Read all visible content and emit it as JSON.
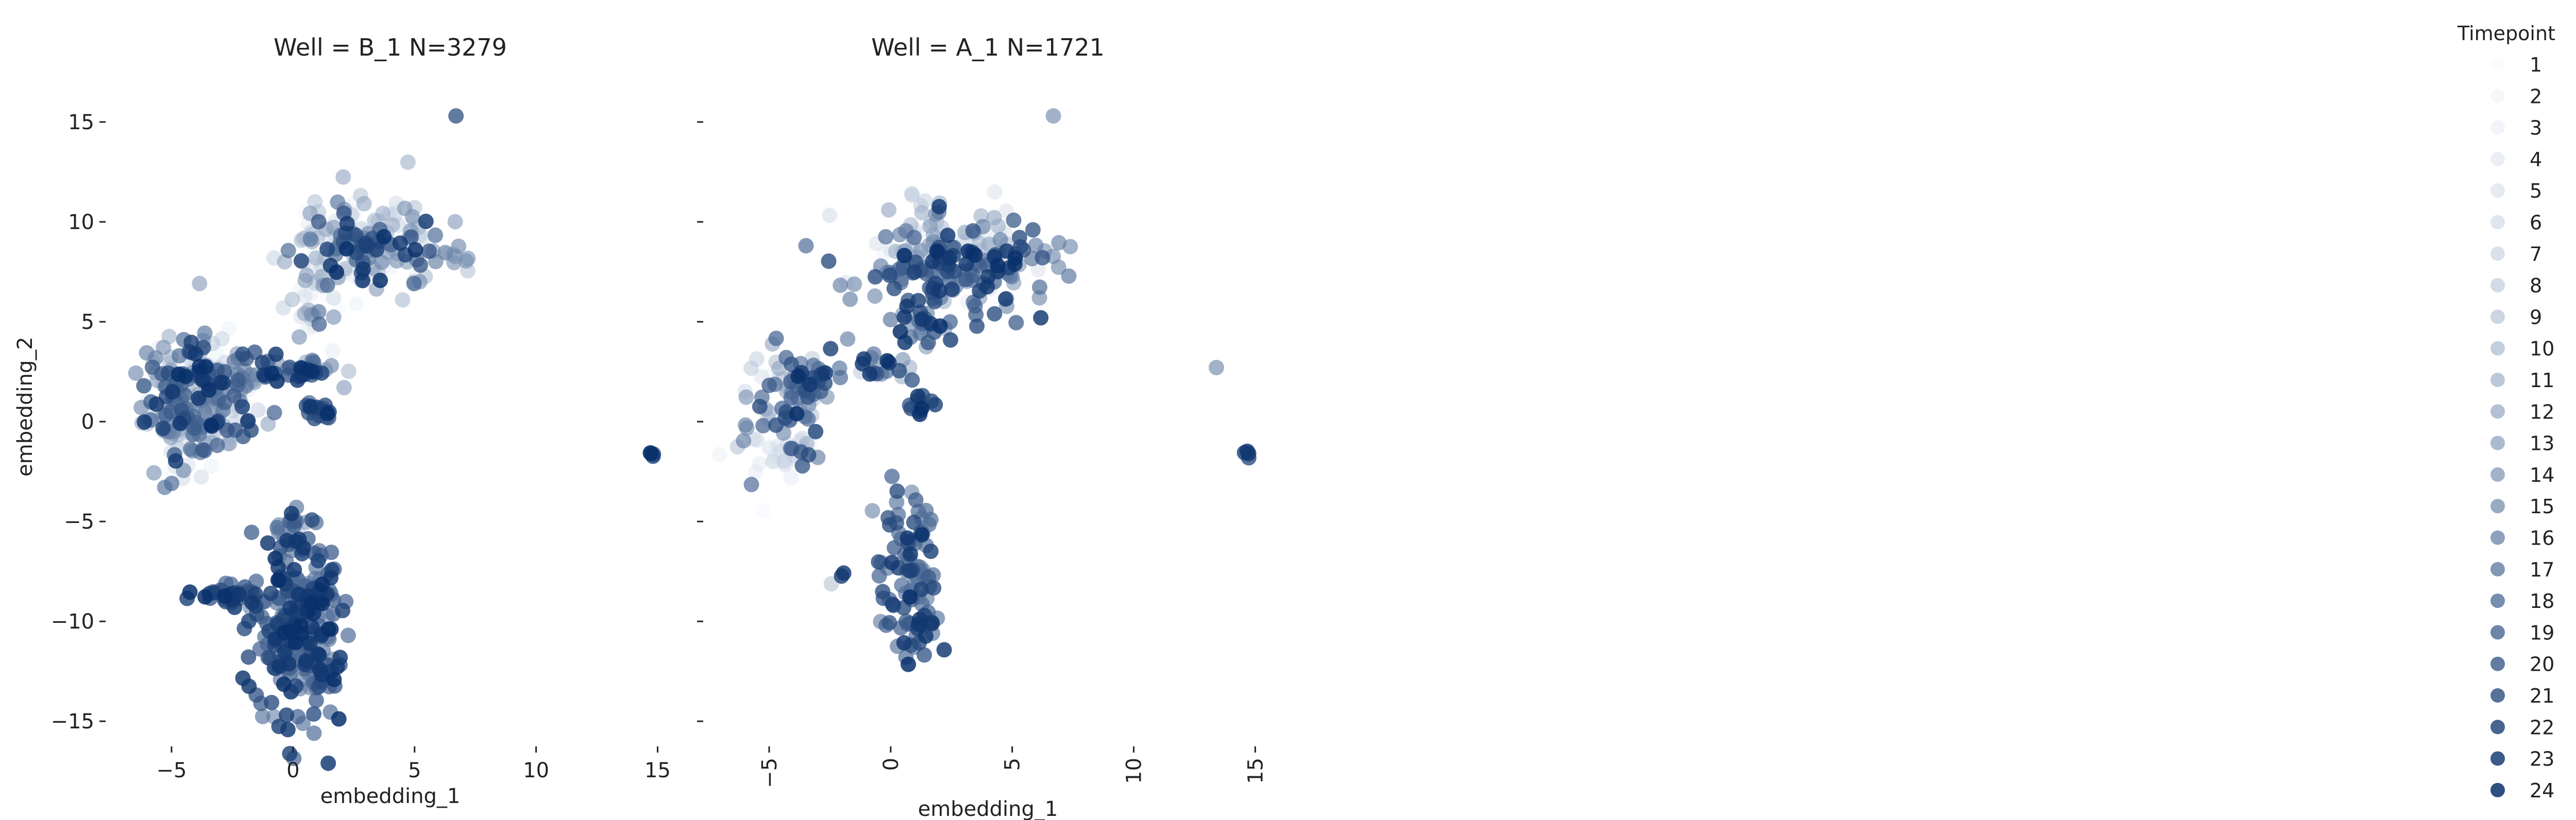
{
  "chart_data": [
    {
      "type": "scatter",
      "title": "Well = B_1 N=3279",
      "xlabel": "embedding_1",
      "ylabel": "embedding_2",
      "xlim": [
        -7.5,
        15.5
      ],
      "ylim": [
        -16,
        17.5
      ],
      "xticks": [
        -5,
        0,
        5,
        10,
        15
      ],
      "xtick_labels": [
        "−5",
        "0",
        "5",
        "10",
        "15"
      ],
      "xtick_rotation": 0,
      "yticks": [
        15,
        10,
        5,
        0,
        -5,
        -10,
        -15
      ],
      "ytick_labels": [
        "15",
        "10",
        "5",
        "0",
        "−5",
        "−10",
        "−15"
      ],
      "grid": false,
      "clusters": [
        {
          "cx": -3.6,
          "cy": 1.2,
          "sx": 1.2,
          "sy": 1.5,
          "n": 190,
          "tmin": 1,
          "tmax": 24
        },
        {
          "cx": -4.8,
          "cy": 0.3,
          "sx": 0.5,
          "sy": 1.7,
          "n": 60,
          "tmin": 4,
          "tmax": 20
        },
        {
          "cx": -0.6,
          "cy": 2.6,
          "sx": 1.2,
          "sy": 0.35,
          "n": 40,
          "tmin": 6,
          "tmax": 24
        },
        {
          "cx": 0.9,
          "cy": 6.2,
          "sx": 0.8,
          "sy": 1.6,
          "n": 35,
          "tmin": 1,
          "tmax": 18
        },
        {
          "cx": 3.0,
          "cy": 9.0,
          "sx": 1.5,
          "sy": 1.3,
          "n": 120,
          "tmin": 1,
          "tmax": 14
        },
        {
          "cx": 2.8,
          "cy": 8.7,
          "sx": 1.1,
          "sy": 0.9,
          "n": 45,
          "tmin": 15,
          "tmax": 24
        },
        {
          "cx": 6.5,
          "cy": 8.3,
          "sx": 0.4,
          "sy": 0.3,
          "n": 8,
          "tmin": 10,
          "tmax": 16
        },
        {
          "cx": 1.0,
          "cy": 0.6,
          "sx": 0.45,
          "sy": 0.3,
          "n": 18,
          "tmin": 18,
          "tmax": 24
        },
        {
          "cx": 0.7,
          "cy": 2.5,
          "sx": 0.3,
          "sy": 0.2,
          "n": 8,
          "tmin": 20,
          "tmax": 24
        },
        {
          "cx": 0.2,
          "cy": -10.3,
          "sx": 0.9,
          "sy": 2.3,
          "n": 260,
          "tmin": 14,
          "tmax": 24
        },
        {
          "cx": 0.0,
          "cy": -5.5,
          "sx": 0.35,
          "sy": 0.8,
          "n": 20,
          "tmin": 8,
          "tmax": 24
        },
        {
          "cx": -2.8,
          "cy": -8.7,
          "sx": 0.7,
          "sy": 0.3,
          "n": 30,
          "tmin": 16,
          "tmax": 24
        },
        {
          "cx": 14.7,
          "cy": -1.6,
          "sx": 0.08,
          "sy": 0.08,
          "n": 4,
          "tmin": 20,
          "tmax": 24
        },
        {
          "cx": 6.7,
          "cy": 15.3,
          "sx": 0.01,
          "sy": 0.01,
          "n": 1,
          "tmin": 20,
          "tmax": 20
        }
      ]
    },
    {
      "type": "scatter",
      "title": "Well = A_1 N=1721",
      "xlabel": "embedding_1",
      "ylabel": "",
      "xlim": [
        -7.5,
        15.5
      ],
      "ylim": [
        -16,
        17.5
      ],
      "xticks": [
        -5,
        0,
        5,
        10,
        15
      ],
      "xtick_labels": [
        "−5",
        "0",
        "5",
        "10",
        "15"
      ],
      "xtick_rotation": -90,
      "yticks": [
        15,
        10,
        5,
        0,
        -5,
        -10,
        -15
      ],
      "ytick_labels": [],
      "grid": false,
      "clusters": [
        {
          "cx": -4.5,
          "cy": 0.8,
          "sx": 0.9,
          "sy": 1.4,
          "n": 70,
          "tmin": 1,
          "tmax": 24
        },
        {
          "cx": -3.2,
          "cy": 1.7,
          "sx": 0.6,
          "sy": 0.6,
          "n": 25,
          "tmin": 14,
          "tmax": 24
        },
        {
          "cx": -4.2,
          "cy": -1.5,
          "sx": 0.6,
          "sy": 0.5,
          "n": 20,
          "tmin": 1,
          "tmax": 6
        },
        {
          "cx": -0.5,
          "cy": 2.8,
          "sx": 1.0,
          "sy": 0.4,
          "n": 20,
          "tmin": 6,
          "tmax": 24
        },
        {
          "cx": 2.8,
          "cy": 7.5,
          "sx": 2.0,
          "sy": 1.1,
          "n": 150,
          "tmin": 12,
          "tmax": 24
        },
        {
          "cx": 2.0,
          "cy": 8.8,
          "sx": 1.5,
          "sy": 1.2,
          "n": 80,
          "tmin": 1,
          "tmax": 12
        },
        {
          "cx": 1.2,
          "cy": 4.8,
          "sx": 0.6,
          "sy": 0.6,
          "n": 30,
          "tmin": 10,
          "tmax": 24
        },
        {
          "cx": 1.4,
          "cy": 0.7,
          "sx": 0.3,
          "sy": 0.3,
          "n": 12,
          "tmin": 18,
          "tmax": 24
        },
        {
          "cx": 0.8,
          "cy": -7.5,
          "sx": 0.6,
          "sy": 1.9,
          "n": 80,
          "tmin": 14,
          "tmax": 24
        },
        {
          "cx": 1.0,
          "cy": -10.5,
          "sx": 0.5,
          "sy": 0.7,
          "n": 18,
          "tmin": 16,
          "tmax": 24
        },
        {
          "cx": -2.0,
          "cy": -7.6,
          "sx": 0.05,
          "sy": 0.05,
          "n": 2,
          "tmin": 22,
          "tmax": 24
        },
        {
          "cx": -2.5,
          "cy": -8.1,
          "sx": 0.05,
          "sy": 0.05,
          "n": 1,
          "tmin": 8,
          "tmax": 8
        },
        {
          "cx": 13.4,
          "cy": 2.7,
          "sx": 0.01,
          "sy": 0.01,
          "n": 1,
          "tmin": 14,
          "tmax": 14
        },
        {
          "cx": 14.7,
          "cy": -1.6,
          "sx": 0.08,
          "sy": 0.08,
          "n": 4,
          "tmin": 20,
          "tmax": 24
        },
        {
          "cx": 6.7,
          "cy": 15.3,
          "sx": 0.01,
          "sy": 0.01,
          "n": 1,
          "tmin": 14,
          "tmax": 14
        }
      ]
    }
  ],
  "legend": {
    "title": "Timepoint",
    "placement": "right",
    "entries": [
      "1",
      "2",
      "3",
      "4",
      "5",
      "6",
      "7",
      "8",
      "9",
      "10",
      "11",
      "12",
      "13",
      "14",
      "15",
      "16",
      "17",
      "18",
      "19",
      "20",
      "21",
      "22",
      "23",
      "24"
    ],
    "color_low": "#eef4fb",
    "color_high": "#08306b"
  }
}
